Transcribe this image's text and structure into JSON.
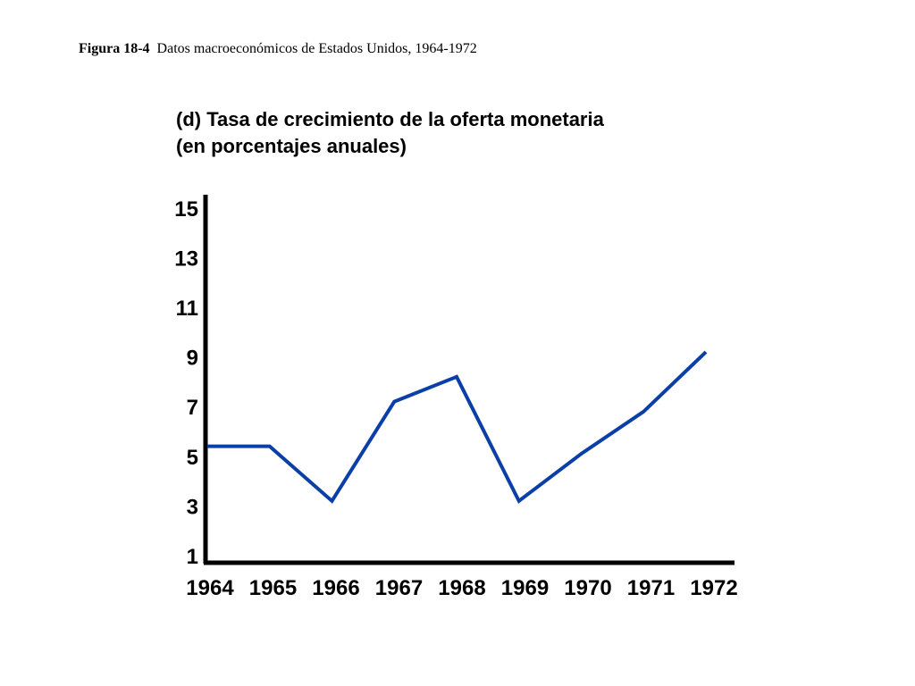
{
  "caption": {
    "figure_number": "Figura 18-4",
    "text": "Datos macroeconómicos de Estados Unidos, 1964-1972"
  },
  "chart_data": {
    "type": "line",
    "title_line1": "(d) Tasa de crecimiento de la oferta monetaria",
    "title_line2": "(en porcentajes anuales)",
    "xlabel": "",
    "ylabel": "",
    "categories": [
      "1964",
      "1965",
      "1966",
      "1967",
      "1968",
      "1969",
      "1970",
      "1971",
      "1972"
    ],
    "y_ticks": [
      "15",
      "13",
      "11",
      "9",
      "7",
      "5",
      "3",
      "1"
    ],
    "ylim": [
      1,
      15.5
    ],
    "grid": false,
    "series": [
      {
        "values": [
          5.4,
          5.4,
          3.2,
          7.2,
          8.2,
          3.2,
          5.1,
          6.8,
          9.2
        ],
        "color": "#0b3fa8"
      }
    ]
  }
}
